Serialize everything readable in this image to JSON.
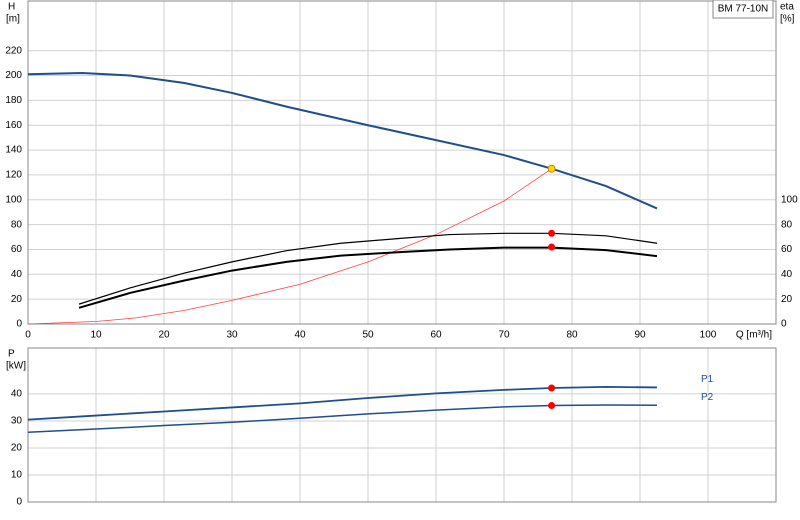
{
  "chart_data": [
    {
      "type": "line",
      "title": "BM 77-10N",
      "ylabel": "H",
      "yunit": "[m]",
      "y2label": "eta",
      "y2unit": "[%]",
      "xlabel": "Q [m³/h]",
      "xlim": [
        0,
        110
      ],
      "xticks": [
        0,
        10,
        20,
        30,
        40,
        50,
        60,
        70,
        80,
        90,
        100
      ],
      "ylim": [
        0,
        260
      ],
      "yticks": [
        0,
        20,
        40,
        60,
        80,
        100,
        120,
        140,
        160,
        180,
        200,
        220
      ],
      "y2lim": [
        0,
        260
      ],
      "y2ticks": [
        0,
        20,
        40,
        60,
        80,
        100
      ],
      "grid": true,
      "series": [
        {
          "color": "#1f4e8c",
          "width": 2,
          "x": [
            0,
            8,
            15,
            23,
            30,
            38,
            50,
            60,
            70,
            77,
            85,
            92.5
          ],
          "values": [
            201,
            202,
            200,
            194,
            186,
            175,
            160,
            148,
            136,
            125,
            111,
            93
          ]
        },
        {
          "color": "#ff4040",
          "width": 0.8,
          "x": [
            0,
            10,
            16,
            23,
            30,
            40,
            50,
            60,
            70,
            77
          ],
          "values": [
            0,
            2,
            5,
            11,
            19,
            32,
            50,
            72,
            99,
            125
          ]
        },
        {
          "color": "#000000",
          "width": 1.2,
          "axis": "y2",
          "x": [
            7.5,
            15,
            23,
            30,
            38,
            46,
            55,
            62,
            70,
            77,
            85,
            92.5
          ],
          "values": [
            16,
            29,
            41,
            50,
            59,
            65,
            69,
            72,
            73,
            73,
            71,
            65
          ]
        },
        {
          "color": "#000000",
          "width": 2,
          "axis": "y2",
          "x": [
            7.5,
            15,
            23,
            30,
            38,
            46,
            55,
            62,
            70,
            77,
            85,
            92.5
          ],
          "values": [
            13,
            25,
            35,
            43,
            50,
            55,
            58,
            60,
            61.5,
            61.5,
            59.5,
            54.6
          ]
        }
      ],
      "points": [
        {
          "x": 77,
          "y": 125,
          "color": "#ffd700"
        },
        {
          "x": 77,
          "y": 73,
          "color": "#ff0000"
        },
        {
          "x": 77,
          "y": 62,
          "color": "#ff0000"
        }
      ]
    },
    {
      "type": "line",
      "ylabel": "P",
      "yunit": "[kW]",
      "xlim": [
        0,
        110
      ],
      "ylim": [
        0,
        57
      ],
      "yticks": [
        0,
        10,
        20,
        30,
        40
      ],
      "grid": true,
      "series": [
        {
          "name": "P1",
          "color": "#1f4e8c",
          "width": 1.8,
          "x": [
            0,
            10,
            20,
            30,
            40,
            50,
            60,
            70,
            77,
            85,
            92.5
          ],
          "values": [
            30.5,
            32,
            33.5,
            35,
            36.5,
            38.5,
            40.2,
            41.5,
            42.2,
            42.6,
            42.4
          ]
        },
        {
          "name": "P2",
          "color": "#1f4e8c",
          "width": 1.5,
          "x": [
            0,
            10,
            20,
            30,
            40,
            50,
            60,
            70,
            77,
            85,
            92.5
          ],
          "values": [
            25.8,
            27,
            28.3,
            29.5,
            31,
            32.6,
            34,
            35.2,
            35.7,
            35.9,
            35.8
          ]
        }
      ],
      "points": [
        {
          "x": 77,
          "y": 42.2,
          "color": "#ff0000"
        },
        {
          "x": 77,
          "y": 35.7,
          "color": "#ff0000"
        }
      ]
    }
  ]
}
